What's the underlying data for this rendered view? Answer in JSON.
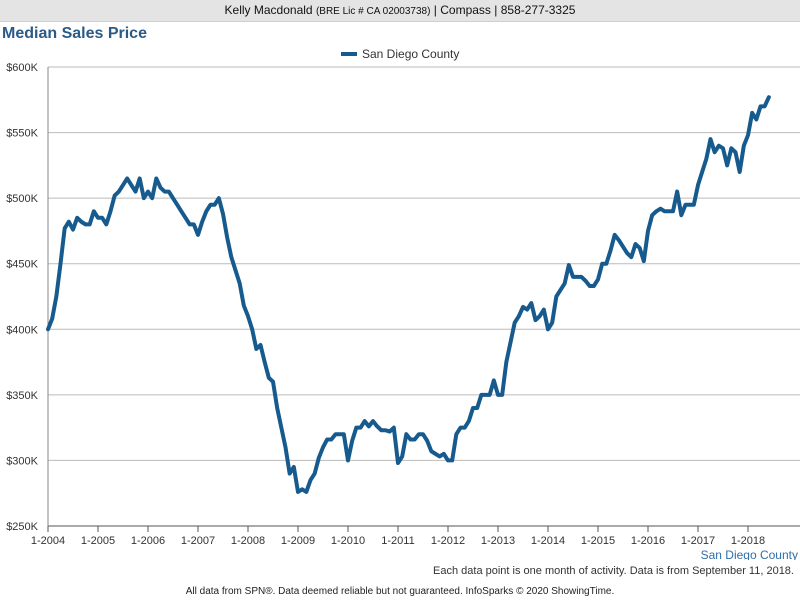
{
  "header": {
    "agent_name": "Kelly Macdonald",
    "license": "(BRE Lic # CA 02003738)",
    "brokerage": "| Compass | 858-277-3325"
  },
  "chart_title": "Median Sales Price",
  "note": "Each data point is one month of activity. Data is from September 11, 2018.",
  "footer": "All data from SPN®. Data deemed reliable but not guaranteed. InfoSparks © 2020 ShowingTime.",
  "colors": {
    "series": "#165a8e",
    "grid": "#bbbbbb",
    "corner_label": "#2f6ea8"
  },
  "chart_data": {
    "type": "line",
    "title": "Median Sales Price",
    "xlabel": "",
    "ylabel": "",
    "x_start": "2004-01",
    "x_tick_labels": [
      "1-2004",
      "1-2005",
      "1-2006",
      "1-2007",
      "1-2008",
      "1-2009",
      "1-2010",
      "1-2011",
      "1-2012",
      "1-2013",
      "1-2014",
      "1-2015",
      "1-2016",
      "1-2017",
      "1-2018"
    ],
    "y_tick_values": [
      250000,
      300000,
      350000,
      400000,
      450000,
      500000,
      550000,
      600000
    ],
    "y_tick_labels": [
      "$250K",
      "$300K",
      "$350K",
      "$400K",
      "$450K",
      "$500K",
      "$550K",
      "$600K"
    ],
    "ylim": [
      250000,
      600000
    ],
    "legend_position": "top-center",
    "corner_label": "San Diego County",
    "grid": true,
    "series": [
      {
        "name": "San Diego County",
        "values": [
          400000,
          408000,
          425000,
          450000,
          477000,
          482000,
          476000,
          485000,
          482000,
          480000,
          480000,
          490000,
          485000,
          485000,
          480000,
          490000,
          502000,
          505000,
          510000,
          515000,
          510000,
          505000,
          515000,
          500000,
          505000,
          500000,
          515000,
          508000,
          505000,
          505000,
          500000,
          495000,
          490000,
          485000,
          480000,
          480000,
          472000,
          482000,
          490000,
          495000,
          495000,
          500000,
          488000,
          470000,
          455000,
          445000,
          435000,
          418000,
          410000,
          400000,
          385000,
          388000,
          375000,
          363000,
          360000,
          340000,
          325000,
          310000,
          290000,
          295000,
          276000,
          278000,
          276000,
          285000,
          290000,
          302000,
          310000,
          316000,
          316000,
          320000,
          320000,
          320000,
          300000,
          315000,
          325000,
          325000,
          330000,
          326000,
          330000,
          326000,
          323000,
          323000,
          322000,
          325000,
          298000,
          303000,
          320000,
          316000,
          316000,
          320000,
          320000,
          315000,
          307000,
          305000,
          303000,
          305000,
          300000,
          300000,
          320000,
          325000,
          325000,
          330000,
          340000,
          340000,
          350000,
          350000,
          350000,
          361000,
          350000,
          350000,
          375000,
          390000,
          405000,
          410000,
          417000,
          415000,
          420000,
          407000,
          410000,
          415000,
          400000,
          405000,
          425000,
          430000,
          435000,
          449000,
          440000,
          440000,
          440000,
          437000,
          433000,
          433000,
          438000,
          450000,
          450000,
          460000,
          472000,
          468000,
          463000,
          458000,
          455000,
          465000,
          462000,
          452000,
          475000,
          487000,
          490000,
          492000,
          490000,
          490000,
          490000,
          505000,
          487000,
          495000,
          495000,
          495000,
          510000,
          520000,
          530000,
          545000,
          535000,
          540000,
          538000,
          525000,
          538000,
          535000,
          520000,
          540000,
          548000,
          565000,
          560000,
          570000,
          570000,
          577000
        ]
      }
    ]
  }
}
